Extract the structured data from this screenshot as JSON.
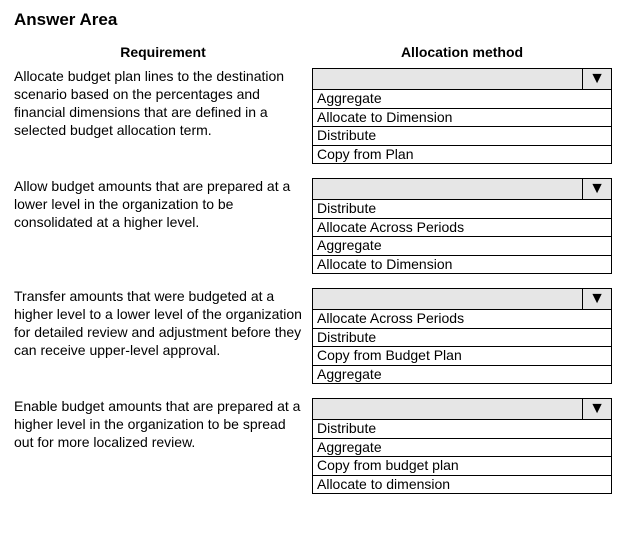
{
  "title": "Answer Area",
  "headers": {
    "requirement": "Requirement",
    "method": "Allocation method"
  },
  "colors": {
    "dd_bg": "#e6e6e6",
    "border": "#000000",
    "page_bg": "#ffffff"
  },
  "triangle_glyph": "▼",
  "rows": [
    {
      "requirement": "Allocate budget plan lines to the destination scenario based on the percentages and financial dimensions that are defined in a selected budget allocation term.",
      "options": [
        "Aggregate",
        "Allocate to Dimension",
        "Distribute",
        "Copy from Plan"
      ]
    },
    {
      "requirement": "Allow budget amounts that are prepared at a lower level in the organization to be consolidated at a higher level.",
      "options": [
        "Distribute",
        "Allocate Across Periods",
        "Aggregate",
        "Allocate to Dimension"
      ]
    },
    {
      "requirement": "Transfer amounts that were budgeted at a higher level to a lower level of the organization for detailed review and adjustment before they can receive upper-level approval.",
      "options": [
        "Allocate Across Periods",
        "Distribute",
        "Copy from Budget Plan",
        "Aggregate"
      ]
    },
    {
      "requirement": "Enable budget amounts that are prepared at a higher level in the organization to be spread out for more localized review.",
      "options": [
        "Distribute",
        "Aggregate",
        "Copy from budget plan",
        "Allocate to dimension"
      ]
    }
  ]
}
